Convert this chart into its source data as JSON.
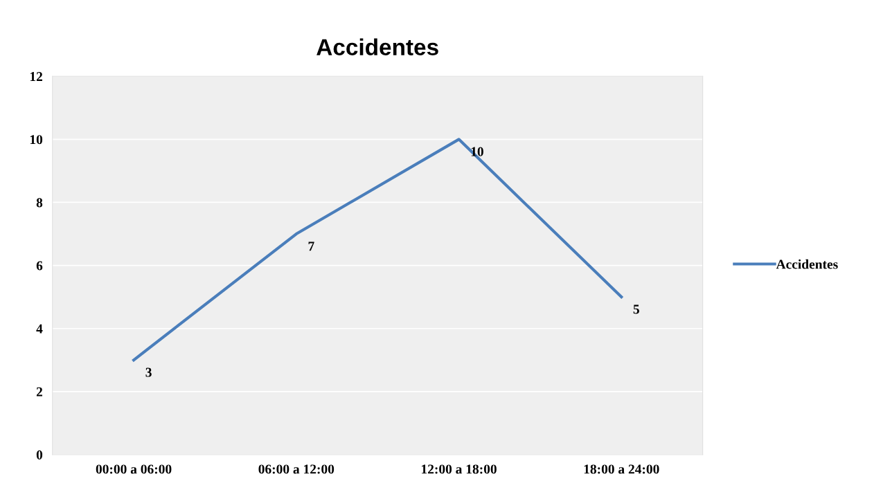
{
  "chart_data": {
    "type": "line",
    "title": "Accidentes",
    "categories": [
      "00:00 a 06:00",
      "06:00 a 12:00",
      "12:00 a 18:00",
      "18:00 a 24:00"
    ],
    "series": [
      {
        "name": "Accidentes",
        "color": "#4a7ebb",
        "values": [
          3,
          7,
          10,
          5
        ]
      }
    ],
    "ylim": [
      0,
      12
    ],
    "yticks": [
      0,
      2,
      4,
      6,
      8,
      10,
      12
    ],
    "grid": "y",
    "legend": "right",
    "data_labels": true,
    "marker": "none",
    "line_style": "solid"
  }
}
